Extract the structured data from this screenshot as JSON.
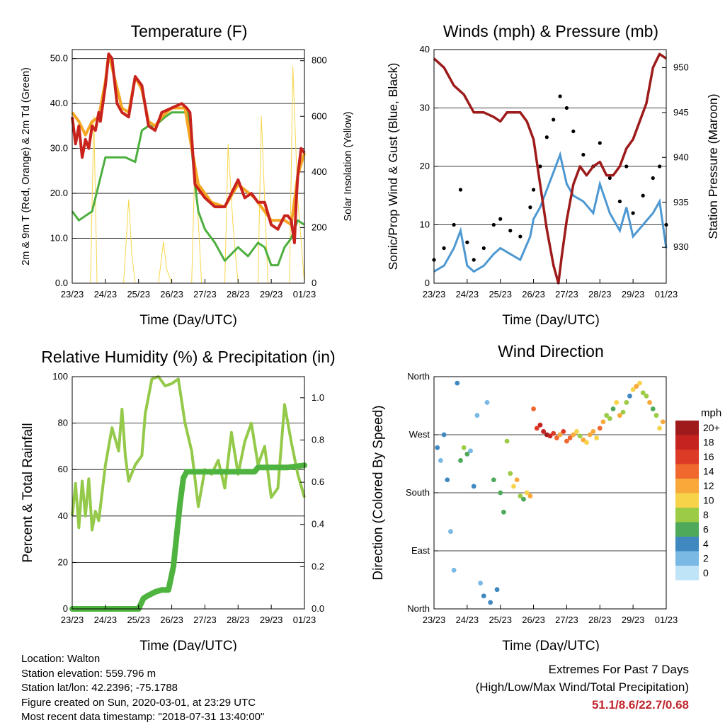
{
  "colors": {
    "temp_red": "#c8231c",
    "temp_orange": "#f5a623",
    "dewpoint_green": "#4caf3e",
    "solar_yellow": "#f7d64a",
    "wind_blue": "#4d98d2",
    "gust_black": "#000000",
    "pressure_maroon": "#9e1b1b",
    "rh_lightgreen": "#94c94a",
    "precip_green": "#4fb33f",
    "extremes_red": "#c1272d"
  },
  "panels": {
    "temperature": {
      "title": "Temperature (F)",
      "xlabel": "Time (Day/UTC)",
      "ylabel_left": "2m & 9m T (Red, Orange) & 2m Td (Green)",
      "ylabel_right": "Solar Insolation (Yellow)",
      "x_ticks": [
        "23/23",
        "24/23",
        "25/23",
        "26/23",
        "27/23",
        "28/23",
        "29/23",
        "01/23"
      ],
      "y_ticks_left": [
        "0.0",
        "10.0",
        "20.0",
        "30.0",
        "40.0",
        "50.0"
      ],
      "y_ticks_right": [
        "0",
        "200",
        "400",
        "600",
        "800"
      ]
    },
    "winds": {
      "title": "Winds (mph) & Pressure (mb)",
      "xlabel": "Time (Day/UTC)",
      "ylabel_left": "Sonic/Prop Wind & Gust (Blue, Black)",
      "ylabel_right": "Station Pressure (Maroon)",
      "x_ticks": [
        "23/23",
        "24/23",
        "25/23",
        "26/23",
        "27/23",
        "28/23",
        "29/23",
        "01/23"
      ],
      "y_ticks_left": [
        "0",
        "10",
        "20",
        "30",
        "40"
      ],
      "y_ticks_right": [
        "930",
        "935",
        "940",
        "945",
        "950"
      ]
    },
    "humidity": {
      "title": "Relative Humidity (%) & Precipitation (in)",
      "xlabel": "Time (Day/UTC)",
      "ylabel_left": "Percent & Total Rainfall",
      "x_ticks": [
        "23/23",
        "24/23",
        "25/23",
        "26/23",
        "27/23",
        "28/23",
        "29/23",
        "01/23"
      ],
      "y_ticks_left": [
        "0",
        "20",
        "40",
        "60",
        "80",
        "100"
      ],
      "y_ticks_right": [
        "0.0",
        "0.2",
        "0.4",
        "0.6",
        "0.8",
        "1.0"
      ]
    },
    "direction": {
      "title": "Wind Direction",
      "xlabel": "Time (Day/UTC)",
      "ylabel_left": "Direction (Colored By Speed)",
      "x_ticks": [
        "23/23",
        "24/23",
        "25/23",
        "26/23",
        "27/23",
        "28/23",
        "29/23",
        "01/23"
      ],
      "y_ticks_left": [
        "North",
        "East",
        "South",
        "West",
        "North"
      ],
      "legend_title": "mph",
      "legend_labels": [
        "20+",
        "18",
        "16",
        "14",
        "12",
        "10",
        "8",
        "6",
        "4",
        "2",
        "0"
      ],
      "legend_colors": [
        "#9f1a1a",
        "#c4231f",
        "#de3b26",
        "#f0682e",
        "#f8a93a",
        "#f7d34a",
        "#9ccb45",
        "#4eaa5a",
        "#3f88c0",
        "#7ab9e4",
        "#bfe4f7"
      ]
    }
  },
  "chart_data": [
    {
      "type": "line",
      "panel": "temperature",
      "x_days": [
        "23/23",
        "24/23",
        "25/23",
        "26/23",
        "27/23",
        "28/23",
        "29/23",
        "01/23"
      ],
      "series": [
        {
          "name": "2m T",
          "color": "#c8231c",
          "axis": "left",
          "x": [
            0,
            0.1,
            0.2,
            0.3,
            0.4,
            0.5,
            0.6,
            0.7,
            0.8,
            0.85,
            1.0,
            1.1,
            1.2,
            1.35,
            1.5,
            1.7,
            1.9,
            2.1,
            2.3,
            2.5,
            2.7,
            3.0,
            3.3,
            3.45,
            3.55,
            3.7,
            4.0,
            4.3,
            4.6,
            5.0,
            5.2,
            5.4,
            5.6,
            5.8,
            6.0,
            6.2,
            6.4,
            6.5,
            6.6,
            6.7,
            6.75,
            6.8,
            6.9,
            7.0
          ],
          "values": [
            37,
            31,
            35,
            28,
            32,
            30,
            35,
            34,
            38,
            36,
            44,
            51,
            50,
            40,
            38,
            37,
            46,
            44,
            35,
            34,
            38,
            39,
            40,
            39,
            38,
            22,
            19,
            17,
            17,
            23,
            19,
            20,
            18,
            18,
            13,
            12,
            15,
            15,
            14,
            9,
            18,
            24,
            30,
            29
          ]
        },
        {
          "name": "9m T",
          "color": "#f5a623",
          "axis": "left",
          "x": [
            0,
            0.2,
            0.4,
            0.6,
            0.8,
            1.0,
            1.1,
            1.3,
            1.5,
            1.7,
            1.9,
            2.1,
            2.3,
            2.5,
            2.7,
            3.0,
            3.4,
            3.6,
            3.8,
            4.2,
            4.6,
            5.0,
            5.5,
            6.0,
            6.4,
            6.6,
            6.8,
            7.0
          ],
          "values": [
            38,
            36,
            33,
            36,
            37,
            45,
            51,
            45,
            39,
            38,
            46,
            43,
            36,
            35,
            37,
            39,
            39,
            30,
            22,
            18,
            17,
            22,
            19,
            14,
            14,
            13,
            24,
            29
          ]
        },
        {
          "name": "2m Td",
          "color": "#4caf3e",
          "axis": "left",
          "x": [
            0,
            0.2,
            0.4,
            0.6,
            0.8,
            1.0,
            1.3,
            1.6,
            1.9,
            2.1,
            2.3,
            2.5,
            2.8,
            3.0,
            3.3,
            3.5,
            3.6,
            3.7,
            3.8,
            4.0,
            4.3,
            4.6,
            5.0,
            5.3,
            5.6,
            5.8,
            6.0,
            6.2,
            6.4,
            6.6,
            6.8,
            7.0
          ],
          "values": [
            16,
            14,
            15,
            16,
            22,
            28,
            28,
            28,
            27,
            34,
            35,
            35,
            37,
            38,
            38,
            38,
            30,
            22,
            16,
            12,
            9,
            5,
            8,
            6,
            9,
            8,
            4,
            4,
            8,
            10,
            14,
            13
          ]
        },
        {
          "name": "Solar Insolation",
          "color": "#f7d64a",
          "axis": "right",
          "x": [
            0,
            0.55,
            0.65,
            0.75,
            0.9,
            1.55,
            1.7,
            1.8,
            1.9,
            2.6,
            2.75,
            2.85,
            3.0,
            3.6,
            3.7,
            3.9,
            4.2,
            4.6,
            4.7,
            4.85,
            5.0,
            5.6,
            5.7,
            5.9,
            6.1,
            6.55,
            6.65,
            6.8,
            7.0
          ],
          "values": [
            0,
            0,
            600,
            0,
            0,
            0,
            300,
            100,
            0,
            0,
            150,
            50,
            0,
            0,
            450,
            0,
            0,
            0,
            500,
            200,
            0,
            0,
            600,
            0,
            0,
            0,
            780,
            300,
            0
          ]
        }
      ],
      "ylim_left": [
        0,
        52
      ],
      "ylim_right": [
        0,
        840
      ],
      "grid": true
    },
    {
      "type": "line",
      "panel": "winds",
      "x_days": [
        "23/23",
        "24/23",
        "25/23",
        "26/23",
        "27/23",
        "28/23",
        "29/23",
        "01/23"
      ],
      "series": [
        {
          "name": "Wind",
          "color": "#4d98d2",
          "axis": "left",
          "x": [
            0,
            0.3,
            0.6,
            0.8,
            1.0,
            1.2,
            1.5,
            1.8,
            2.0,
            2.3,
            2.6,
            2.9,
            3.0,
            3.2,
            3.4,
            3.6,
            3.8,
            4.0,
            4.2,
            4.5,
            4.8,
            5.0,
            5.3,
            5.6,
            5.8,
            6.0,
            6.3,
            6.6,
            6.8,
            7.0
          ],
          "values": [
            2,
            3,
            6,
            9,
            3,
            2,
            3,
            5,
            6,
            5,
            4,
            8,
            11,
            13,
            16,
            19,
            22,
            17,
            15,
            14,
            12,
            17,
            12,
            9,
            13,
            8,
            10,
            12,
            14,
            6
          ]
        },
        {
          "name": "Gust",
          "color": "#000000",
          "axis": "left",
          "x": [
            0,
            0.3,
            0.6,
            0.8,
            1.0,
            1.2,
            1.5,
            1.8,
            2.0,
            2.3,
            2.6,
            2.9,
            3.0,
            3.2,
            3.4,
            3.6,
            3.8,
            4.0,
            4.2,
            4.5,
            4.8,
            5.0,
            5.3,
            5.6,
            5.8,
            6.0,
            6.3,
            6.6,
            6.8,
            7.0
          ],
          "values": [
            4,
            6,
            10,
            16,
            7,
            4,
            6,
            10,
            11,
            9,
            8,
            13,
            16,
            20,
            25,
            28,
            32,
            30,
            26,
            22,
            20,
            24,
            18,
            14,
            20,
            12,
            15,
            18,
            20,
            10
          ]
        },
        {
          "name": "Pressure",
          "color": "#9e1b1b",
          "axis": "right",
          "x": [
            0,
            0.3,
            0.6,
            0.9,
            1.2,
            1.5,
            1.8,
            2.0,
            2.2,
            2.4,
            2.6,
            2.8,
            3.0,
            3.2,
            3.4,
            3.6,
            3.75,
            3.85,
            4.0,
            4.2,
            4.4,
            4.6,
            4.8,
            5.0,
            5.2,
            5.4,
            5.6,
            5.8,
            6.0,
            6.2,
            6.4,
            6.6,
            6.8,
            7.0
          ],
          "values": [
            951,
            950,
            948,
            947,
            945,
            945,
            944.5,
            944,
            945,
            945,
            945,
            944,
            942,
            937,
            932,
            928,
            926,
            929,
            933,
            937,
            939,
            938,
            939,
            939.5,
            938,
            938,
            939,
            941,
            942,
            944,
            946,
            950,
            951.5,
            951
          ]
        }
      ],
      "ylim_left": [
        0,
        40
      ],
      "ylim_right": [
        926,
        952
      ],
      "grid": true
    },
    {
      "type": "line",
      "panel": "humidity",
      "x_days": [
        "23/23",
        "24/23",
        "25/23",
        "26/23",
        "27/23",
        "28/23",
        "29/23",
        "01/23"
      ],
      "series": [
        {
          "name": "Relative Humidity",
          "color": "#94c94a",
          "axis": "left",
          "x": [
            0,
            0.1,
            0.2,
            0.3,
            0.4,
            0.5,
            0.6,
            0.7,
            0.8,
            1.0,
            1.2,
            1.4,
            1.5,
            1.6,
            1.7,
            1.9,
            2.1,
            2.2,
            2.4,
            2.6,
            2.8,
            3.0,
            3.2,
            3.4,
            3.6,
            3.8,
            4.0,
            4.2,
            4.4,
            4.6,
            4.8,
            5.0,
            5.2,
            5.4,
            5.6,
            5.8,
            6.0,
            6.2,
            6.4,
            6.6,
            6.8,
            7.0
          ],
          "values": [
            40,
            54,
            35,
            55,
            40,
            56,
            34,
            42,
            38,
            62,
            78,
            68,
            86,
            66,
            55,
            62,
            66,
            84,
            99,
            100,
            96,
            97,
            99,
            80,
            68,
            44,
            60,
            58,
            64,
            52,
            76,
            58,
            72,
            80,
            62,
            70,
            48,
            52,
            88,
            72,
            58,
            48
          ]
        },
        {
          "name": "Total Precipitation",
          "color": "#4fb33f",
          "axis": "right",
          "x": [
            0,
            1.0,
            2.0,
            2.15,
            2.25,
            2.5,
            2.7,
            2.9,
            3.05,
            3.15,
            3.25,
            3.35,
            3.45,
            4.0,
            4.5,
            5.0,
            5.5,
            5.6,
            6.0,
            6.5,
            7.0
          ],
          "values": [
            0,
            0,
            0,
            0.05,
            0.06,
            0.08,
            0.09,
            0.09,
            0.2,
            0.35,
            0.5,
            0.62,
            0.65,
            0.65,
            0.65,
            0.65,
            0.65,
            0.67,
            0.67,
            0.67,
            0.68
          ]
        }
      ],
      "ylim_left": [
        0,
        100
      ],
      "ylim_right": [
        0,
        1.1
      ],
      "grid": true
    },
    {
      "type": "scatter",
      "panel": "direction",
      "x_days": [
        "23/23",
        "24/23",
        "25/23",
        "26/23",
        "27/23",
        "28/23",
        "29/23",
        "01/23"
      ],
      "y_categories": [
        "North",
        "East",
        "South",
        "West",
        "North"
      ],
      "series": [
        {
          "name": "Direction",
          "colorBy": "speed_mph",
          "x": [
            0.1,
            0.2,
            0.3,
            0.4,
            0.5,
            0.6,
            0.7,
            0.8,
            0.9,
            1.0,
            1.1,
            1.2,
            1.3,
            1.4,
            1.5,
            1.6,
            1.7,
            1.8,
            1.9,
            2.0,
            2.1,
            2.2,
            2.3,
            2.4,
            2.5,
            2.6,
            2.7,
            2.8,
            2.9,
            3.0,
            3.1,
            3.2,
            3.3,
            3.4,
            3.5,
            3.6,
            3.7,
            3.8,
            3.9,
            4.0,
            4.1,
            4.2,
            4.3,
            4.4,
            4.5,
            4.6,
            4.7,
            4.8,
            4.9,
            5.0,
            5.1,
            5.2,
            5.3,
            5.4,
            5.5,
            5.6,
            5.7,
            5.8,
            5.9,
            6.0,
            6.1,
            6.2,
            6.3,
            6.4,
            6.5,
            6.6,
            6.7,
            6.8,
            6.9
          ],
          "dir_deg": [
            250,
            230,
            270,
            200,
            120,
            60,
            350,
            230,
            250,
            240,
            245,
            190,
            300,
            40,
            20,
            320,
            10,
            200,
            30,
            180,
            150,
            260,
            210,
            190,
            200,
            175,
            170,
            180,
            175,
            310,
            280,
            285,
            275,
            270,
            268,
            272,
            265,
            270,
            275,
            260,
            265,
            270,
            275,
            268,
            262,
            258,
            270,
            275,
            265,
            280,
            290,
            300,
            295,
            310,
            320,
            300,
            305,
            320,
            330,
            340,
            345,
            350,
            335,
            330,
            320,
            310,
            300,
            280,
            290
          ],
          "speed_mph": [
            3,
            2,
            4,
            3,
            1,
            2,
            3,
            6,
            8,
            5,
            2,
            3,
            2,
            1,
            3,
            2,
            4,
            5,
            4,
            6,
            5,
            8,
            7,
            10,
            11,
            8,
            6,
            10,
            12,
            14,
            16,
            18,
            18,
            20,
            18,
            16,
            14,
            12,
            16,
            14,
            13,
            12,
            10,
            8,
            12,
            10,
            11,
            12,
            9,
            14,
            12,
            8,
            7,
            6,
            10,
            12,
            8,
            7,
            4,
            10,
            12,
            9,
            8,
            7,
            11,
            6,
            8,
            9,
            12
          ]
        }
      ]
    }
  ],
  "footer": {
    "location": "Location: Walton",
    "elevation": "Station elevation: 559.796 m",
    "latlon": "Station lat/lon: 42.2396; -75.1788",
    "created": "Figure created on Sun, 2020-03-01, at 23:29 UTC",
    "recent": "Most recent data timestamp: \"2018-07-31 13:40:00\""
  },
  "extremes": {
    "title": "Extremes For Past 7 Days",
    "subtitle": "(High/Low/Max Wind/Total Precipitation)",
    "values": "51.1/8.6/22.7/0.68"
  }
}
